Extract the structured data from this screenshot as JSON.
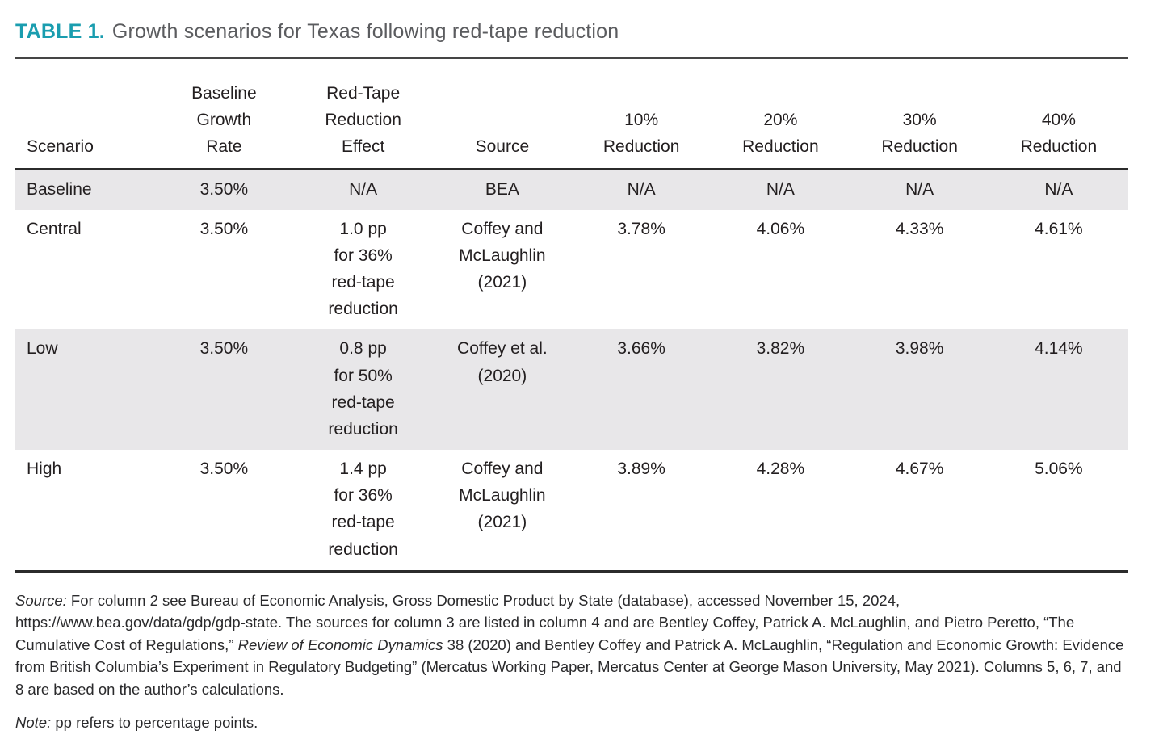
{
  "title": {
    "label": "TABLE 1.",
    "text": "Growth scenarios for Texas following red-tape reduction"
  },
  "colors": {
    "accent_teal": "#1a9daf",
    "title_gray": "#5b5c5f",
    "shaded_row": "#e8e7e9",
    "rule_dark": "#2b2b2b",
    "text_dark": "#231f20"
  },
  "table": {
    "headers": [
      [
        "Scenario"
      ],
      [
        "Baseline",
        "Growth",
        "Rate"
      ],
      [
        "Red-Tape",
        "Reduction",
        "Effect"
      ],
      [
        "Source"
      ],
      [
        "10%",
        "Reduction"
      ],
      [
        "20%",
        "Reduction"
      ],
      [
        "30%",
        "Reduction"
      ],
      [
        "40%",
        "Reduction"
      ]
    ],
    "rows": [
      {
        "shaded": true,
        "cells": [
          "Baseline",
          "3.50%",
          "N/A",
          "BEA",
          "N/A",
          "N/A",
          "N/A",
          "N/A"
        ]
      },
      {
        "shaded": false,
        "cells": [
          "Central",
          "3.50%",
          [
            "1.0 pp",
            "for 36%",
            "red-tape",
            "reduction"
          ],
          [
            "Coffey and",
            "McLaughlin",
            "(2021)"
          ],
          "3.78%",
          "4.06%",
          "4.33%",
          "4.61%"
        ]
      },
      {
        "shaded": true,
        "cells": [
          "Low",
          "3.50%",
          [
            "0.8 pp",
            "for 50%",
            "red-tape",
            "reduction"
          ],
          [
            "Coffey et al.",
            "(2020)"
          ],
          "3.66%",
          "3.82%",
          "3.98%",
          "4.14%"
        ]
      },
      {
        "shaded": false,
        "cells": [
          "High",
          "3.50%",
          [
            "1.4 pp",
            "for 36%",
            "red-tape",
            "reduction"
          ],
          [
            "Coffey and",
            "McLaughlin",
            "(2021)"
          ],
          "3.89%",
          "4.28%",
          "4.67%",
          "5.06%"
        ]
      }
    ]
  },
  "notes": {
    "source": [
      {
        "text": "Source:",
        "italic": true
      },
      {
        "text": " For column 2 see Bureau of Economic Analysis, Gross Domestic Product by State (database), accessed November 15, 2024, https://www.bea.gov/data/gdp/gdp-state. The sources for column 3 are listed in column 4 and are Bentley Coffey, Patrick A. McLaughlin, and Pietro Peretto, “The Cumulative Cost of Regulations,” ",
        "italic": false
      },
      {
        "text": "Review of Economic Dynamics",
        "italic": true
      },
      {
        "text": " 38 (2020) and Bentley Coffey and Patrick A. McLaughlin, “Regulation and Economic Growth: Evidence from British Columbia’s Experiment in Regulatory Budgeting” (Mercatus Working Paper, Mercatus Center at George Mason University, May 2021). Columns 5, 6, 7, and 8 are based on the author’s calculations.",
        "italic": false
      }
    ],
    "note": [
      {
        "text": "Note:",
        "italic": true
      },
      {
        "text": " pp refers to percentage points.",
        "italic": false
      }
    ]
  }
}
